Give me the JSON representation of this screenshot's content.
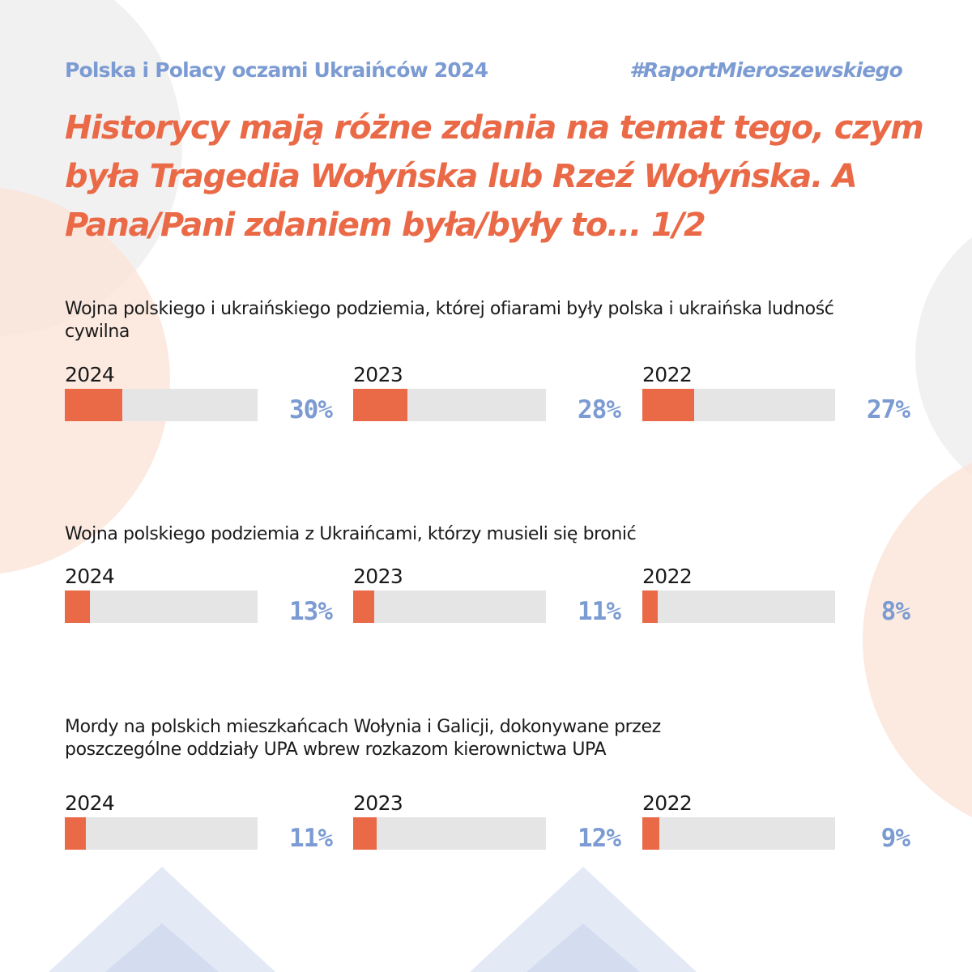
{
  "header": {
    "left": "Polska i Polacy oczami Ukraińców 2024",
    "right": "#RaportMieroszewskiego"
  },
  "title": "Historycy mają różne zdania na temat tego, czym była Tragedia Wołyńska lub Rzeź Wołyńska. A Pana/Pani zdaniem była/były to... 1/2",
  "colors": {
    "accent": "#ea6a48",
    "blue": "#7b9bd2",
    "track": "#e5e5e5"
  },
  "chart_data": [
    {
      "type": "bar",
      "question": "Wojna polskiego i ukraińskiego podziemia, której ofiarami były polska i ukraińska ludność cywilna",
      "categories": [
        "2024",
        "2023",
        "2022"
      ],
      "values": [
        30,
        28,
        27
      ],
      "labels": [
        "30%",
        "28%",
        "27%"
      ],
      "ylim": [
        0,
        100
      ]
    },
    {
      "type": "bar",
      "question": "Wojna polskiego podziemia z Ukraińcami, którzy musieli się bronić",
      "categories": [
        "2024",
        "2023",
        "2022"
      ],
      "values": [
        13,
        11,
        8
      ],
      "labels": [
        "13%",
        "11%",
        "8%"
      ],
      "ylim": [
        0,
        100
      ]
    },
    {
      "type": "bar",
      "question": "Mordy na polskich mieszkańcach Wołynia i Galicji, dokonywane przez poszczególne oddziały UPA wbrew rozkazom kierownictwa UPA",
      "categories": [
        "2024",
        "2023",
        "2022"
      ],
      "values": [
        11,
        12,
        9
      ],
      "labels": [
        "11%",
        "12%",
        "9%"
      ],
      "ylim": [
        0,
        100
      ]
    }
  ]
}
